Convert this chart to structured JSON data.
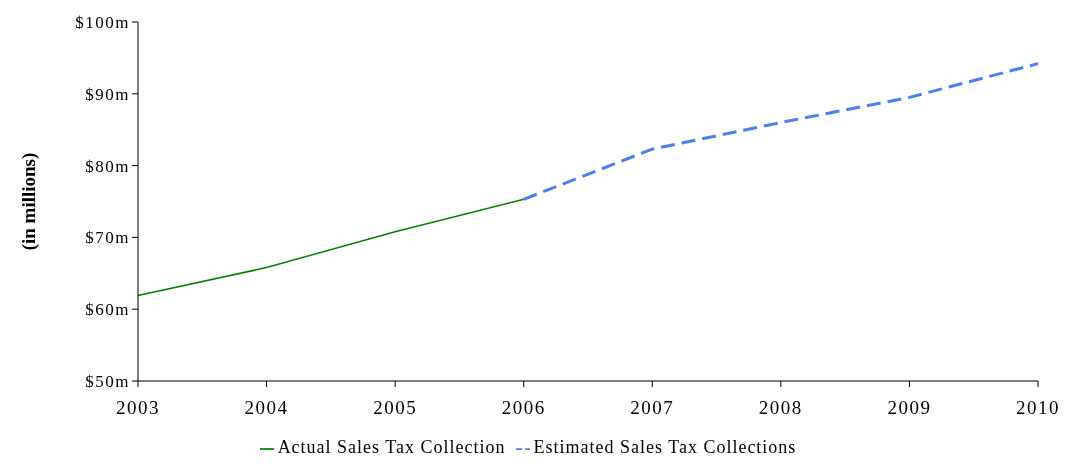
{
  "chart_data": {
    "type": "line",
    "ylabel": "(in  millions)",
    "categories": [
      "2003",
      "2004",
      "2005",
      "2006",
      "2007",
      "2008",
      "2009",
      "2010"
    ],
    "series": [
      {
        "name": "Actual Sales Tax Collection",
        "color": "#008000",
        "line_style": "solid",
        "values": [
          61.9,
          65.8,
          70.8,
          75.3,
          null,
          null,
          null,
          null
        ]
      },
      {
        "name": "Estimated Sales Tax Collections",
        "color": "#4a7ff0",
        "line_style": "dashed",
        "values": [
          null,
          null,
          null,
          75.3,
          82.3,
          86,
          89.5,
          94.2
        ]
      }
    ],
    "ylim": [
      50,
      100
    ],
    "yticks": [
      {
        "value": 50,
        "label": "$50m"
      },
      {
        "value": 60,
        "label": "$60m"
      },
      {
        "value": 70,
        "label": "$70m"
      },
      {
        "value": 80,
        "label": "$80m"
      },
      {
        "value": 90,
        "label": "$90m"
      },
      {
        "value": 100,
        "label": "$100m"
      }
    ],
    "grid": false,
    "legend": "bottom",
    "marker": "none"
  }
}
